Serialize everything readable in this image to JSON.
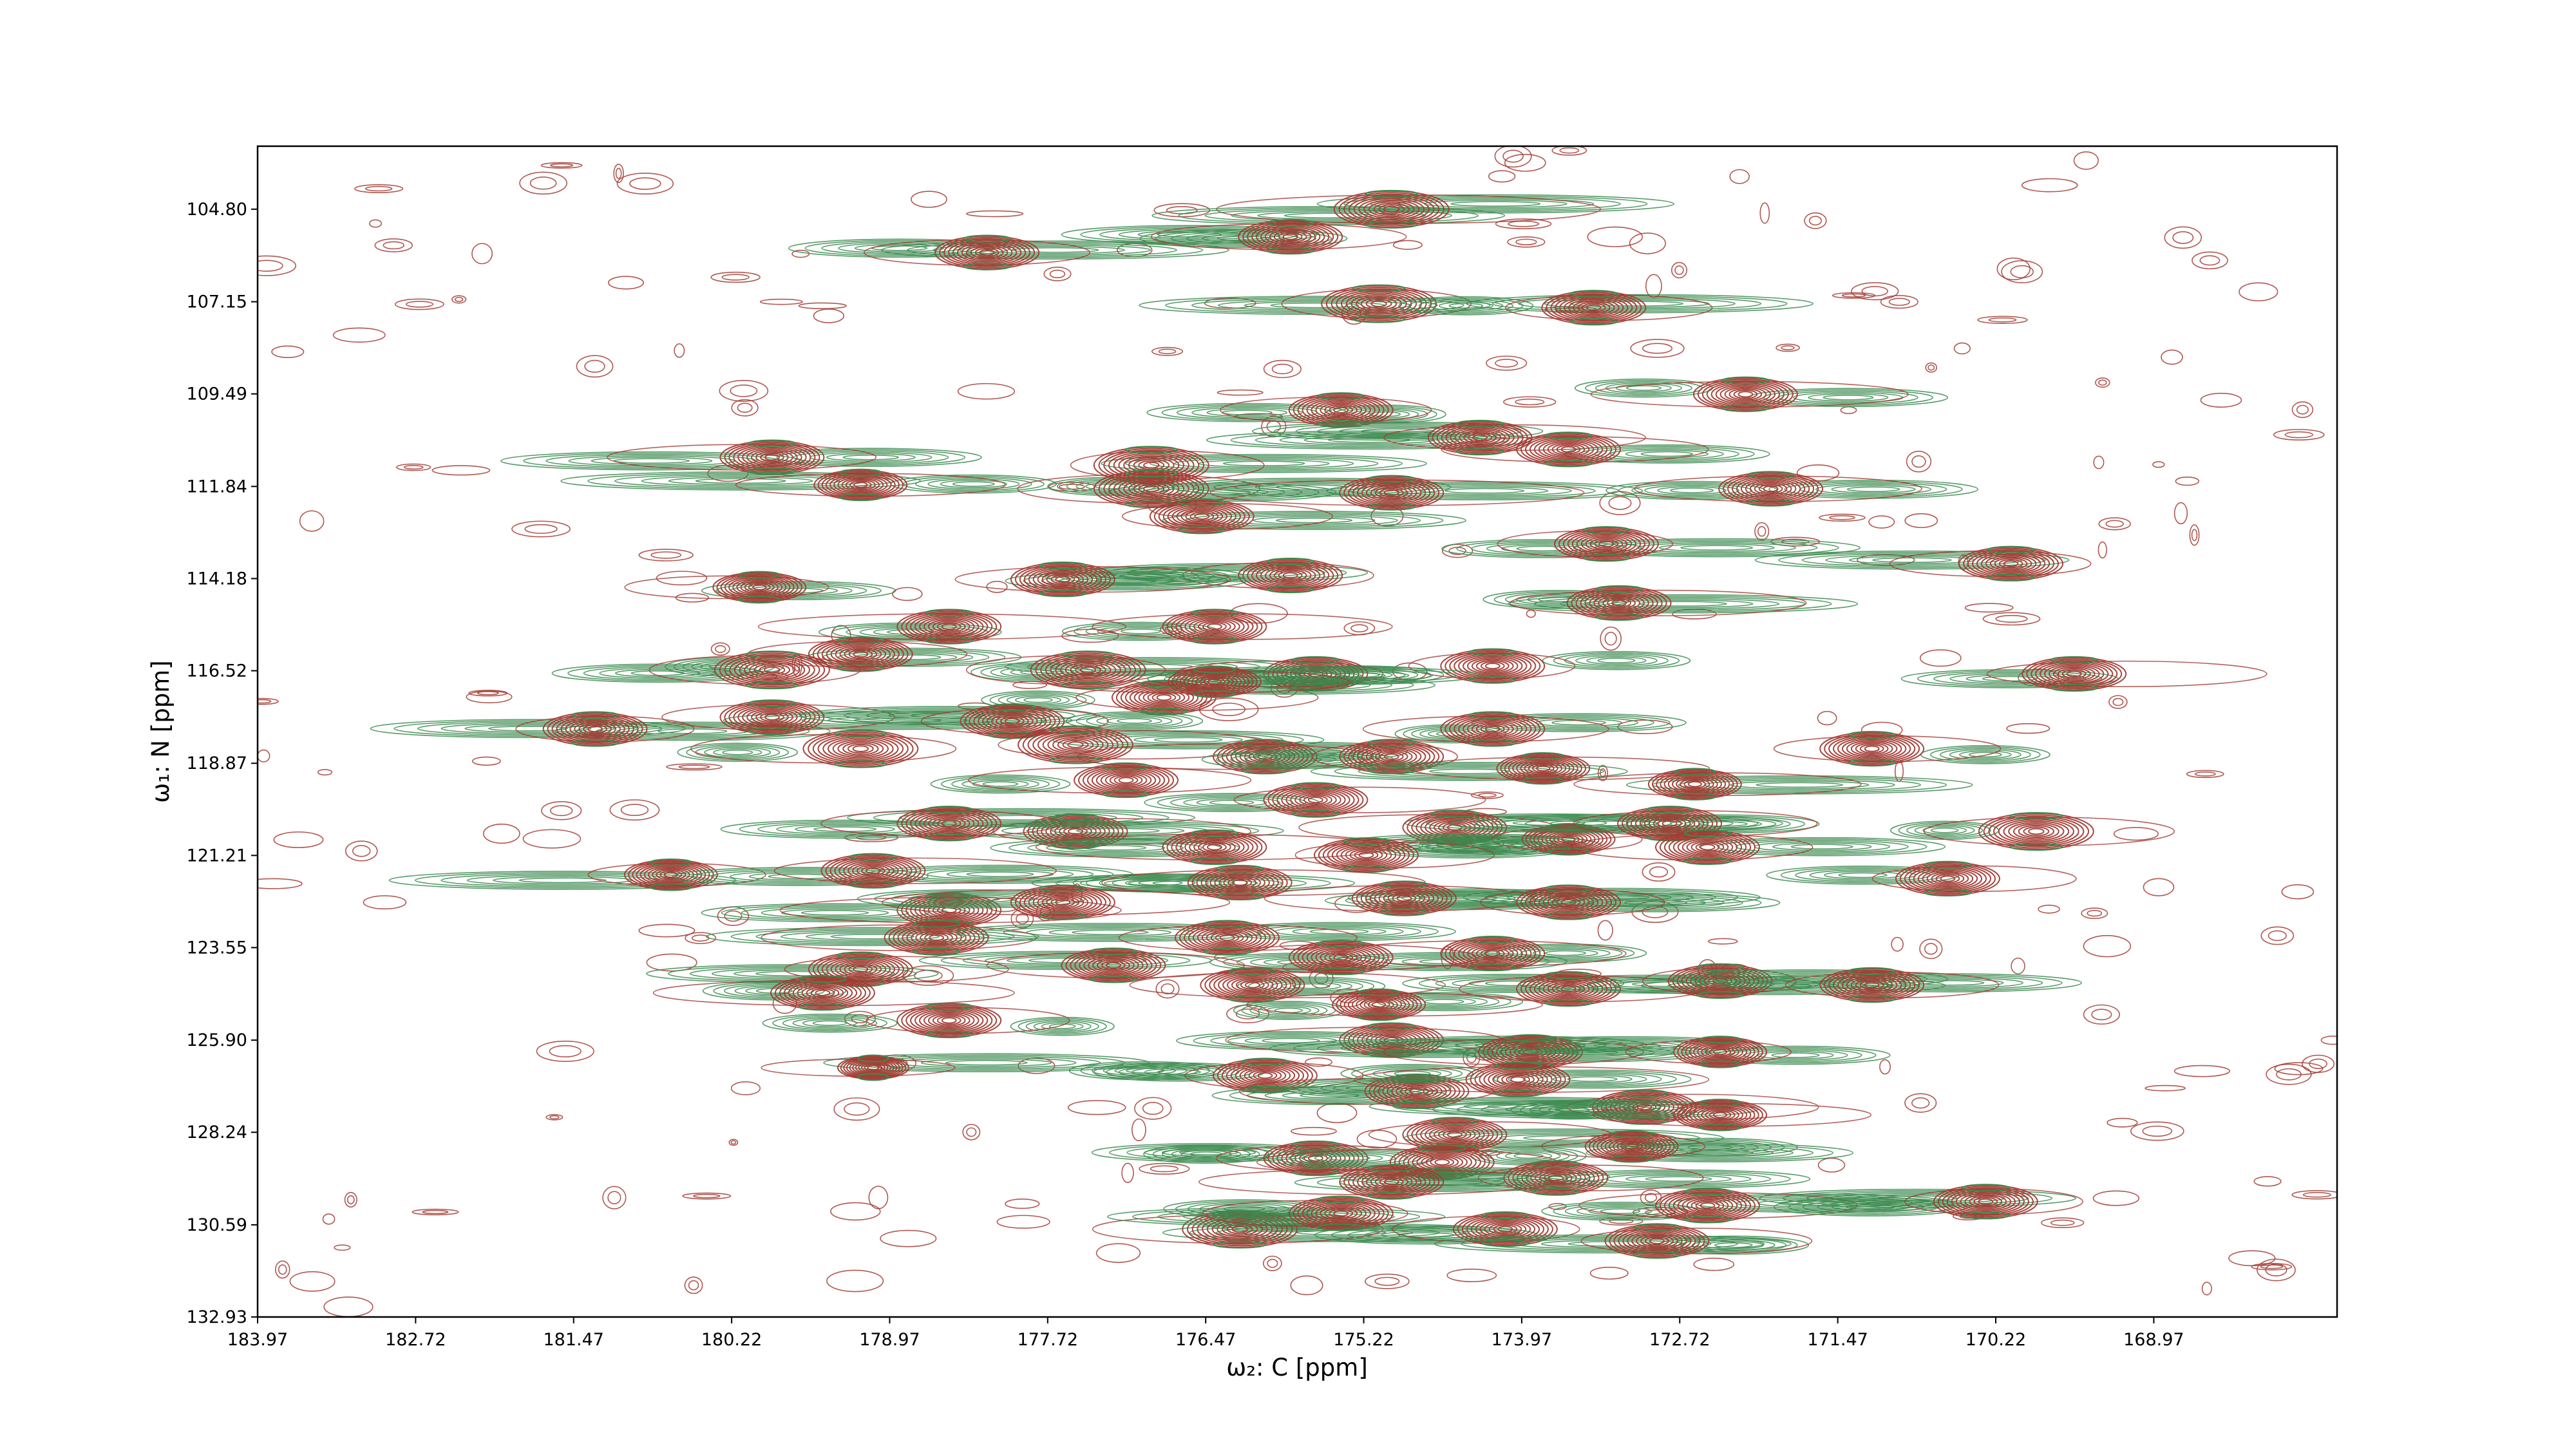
{
  "chart_data": {
    "type": "contour",
    "xlabel": "ω₂: C [ppm]",
    "ylabel": "ω₁: N [ppm]",
    "x_ticks": [
      "183.97",
      "182.72",
      "181.47",
      "180.22",
      "178.97",
      "177.72",
      "176.47",
      "175.22",
      "173.97",
      "172.72",
      "171.47",
      "170.22",
      "168.97"
    ],
    "y_ticks": [
      "104.80",
      "107.15",
      "109.49",
      "111.84",
      "114.18",
      "116.52",
      "118.87",
      "121.21",
      "123.55",
      "125.90",
      "128.24",
      "130.59",
      "132.93"
    ],
    "xlim": [
      183.97,
      167.52
    ],
    "ylim": [
      132.93,
      103.2
    ],
    "x_axis_reversed": true,
    "y_axis_reversed": true,
    "series": [
      {
        "color": "#a23b33",
        "contour_sign": "positive"
      },
      {
        "color": "#3a8a4d",
        "contour_sign": "negative"
      }
    ],
    "peaks": [
      [
        175.0,
        104.8,
        1.0
      ],
      [
        178.2,
        105.9,
        0.9
      ],
      [
        175.8,
        105.5,
        0.9
      ],
      [
        175.1,
        107.2,
        1.0
      ],
      [
        173.4,
        107.3,
        0.9
      ],
      [
        175.4,
        109.9,
        0.9
      ],
      [
        174.3,
        110.6,
        0.9
      ],
      [
        173.6,
        110.9,
        0.9
      ],
      [
        172.2,
        109.5,
        0.9
      ],
      [
        179.9,
        111.1,
        0.9
      ],
      [
        179.2,
        111.8,
        0.8
      ],
      [
        176.9,
        111.3,
        1.0
      ],
      [
        176.9,
        111.9,
        1.0
      ],
      [
        176.5,
        112.6,
        0.9
      ],
      [
        175.0,
        112.0,
        0.9
      ],
      [
        172.0,
        111.9,
        0.9
      ],
      [
        173.3,
        113.3,
        0.9
      ],
      [
        175.8,
        114.1,
        0.9
      ],
      [
        177.6,
        114.2,
        0.9
      ],
      [
        180.0,
        114.4,
        0.8
      ],
      [
        173.2,
        114.8,
        0.9
      ],
      [
        170.1,
        113.8,
        0.9
      ],
      [
        176.4,
        115.4,
        0.9
      ],
      [
        178.5,
        115.4,
        0.9
      ],
      [
        179.2,
        116.1,
        0.9
      ],
      [
        179.9,
        116.5,
        1.0
      ],
      [
        177.4,
        116.5,
        1.0
      ],
      [
        175.6,
        116.6,
        0.9
      ],
      [
        174.2,
        116.4,
        0.9
      ],
      [
        176.8,
        117.2,
        0.9
      ],
      [
        176.4,
        116.8,
        0.8
      ],
      [
        169.6,
        116.6,
        0.9
      ],
      [
        181.3,
        118.0,
        0.9
      ],
      [
        179.9,
        117.7,
        0.9
      ],
      [
        179.2,
        118.5,
        1.0
      ],
      [
        178.0,
        117.8,
        0.9
      ],
      [
        177.5,
        118.4,
        1.0
      ],
      [
        177.1,
        119.3,
        0.9
      ],
      [
        176.0,
        118.7,
        0.9
      ],
      [
        175.0,
        118.7,
        0.9
      ],
      [
        174.2,
        118.0,
        0.9
      ],
      [
        173.8,
        119.0,
        0.8
      ],
      [
        172.6,
        119.4,
        0.8
      ],
      [
        171.2,
        118.5,
        0.9
      ],
      [
        175.6,
        119.8,
        0.9
      ],
      [
        174.5,
        120.5,
        0.9
      ],
      [
        173.6,
        120.8,
        0.8
      ],
      [
        177.5,
        120.6,
        0.9
      ],
      [
        178.5,
        120.4,
        0.9
      ],
      [
        176.4,
        121.0,
        0.9
      ],
      [
        175.2,
        121.2,
        0.9
      ],
      [
        172.8,
        120.4,
        0.9
      ],
      [
        172.5,
        121.0,
        0.9
      ],
      [
        170.6,
        121.8,
        0.9
      ],
      [
        169.9,
        120.6,
        1.0
      ],
      [
        180.7,
        121.7,
        0.8
      ],
      [
        179.1,
        121.6,
        0.9
      ],
      [
        176.2,
        121.9,
        0.9
      ],
      [
        174.9,
        122.3,
        0.9
      ],
      [
        173.6,
        122.4,
        0.9
      ],
      [
        178.5,
        122.6,
        0.9
      ],
      [
        177.6,
        122.4,
        0.9
      ],
      [
        178.6,
        123.3,
        0.9
      ],
      [
        176.3,
        123.3,
        0.9
      ],
      [
        175.4,
        123.8,
        0.9
      ],
      [
        174.2,
        123.7,
        0.9
      ],
      [
        177.2,
        124.0,
        0.9
      ],
      [
        179.2,
        124.1,
        0.9
      ],
      [
        179.5,
        124.7,
        0.9
      ],
      [
        176.1,
        124.5,
        0.9
      ],
      [
        175.1,
        125.0,
        0.8
      ],
      [
        173.6,
        124.6,
        0.9
      ],
      [
        172.4,
        124.4,
        0.9
      ],
      [
        171.2,
        124.5,
        0.9
      ],
      [
        178.5,
        125.4,
        0.9
      ],
      [
        175.0,
        125.9,
        0.9
      ],
      [
        173.9,
        126.2,
        0.9
      ],
      [
        172.4,
        126.2,
        0.8
      ],
      [
        176.0,
        126.8,
        0.9
      ],
      [
        174.8,
        127.2,
        0.9
      ],
      [
        174.0,
        126.9,
        0.9
      ],
      [
        173.0,
        127.6,
        0.9
      ],
      [
        172.4,
        127.8,
        0.8
      ],
      [
        174.5,
        128.3,
        0.9
      ],
      [
        173.1,
        128.6,
        0.8
      ],
      [
        175.6,
        128.9,
        0.9
      ],
      [
        174.6,
        129.0,
        0.9
      ],
      [
        173.7,
        129.4,
        0.9
      ],
      [
        175.0,
        129.5,
        0.9
      ],
      [
        172.5,
        130.1,
        0.9
      ],
      [
        176.2,
        130.7,
        1.0
      ],
      [
        175.4,
        130.3,
        0.9
      ],
      [
        174.1,
        130.7,
        0.9
      ],
      [
        172.9,
        131.0,
        0.9
      ],
      [
        170.3,
        130.0,
        0.9
      ],
      [
        179.1,
        126.6,
        0.6
      ]
    ]
  }
}
